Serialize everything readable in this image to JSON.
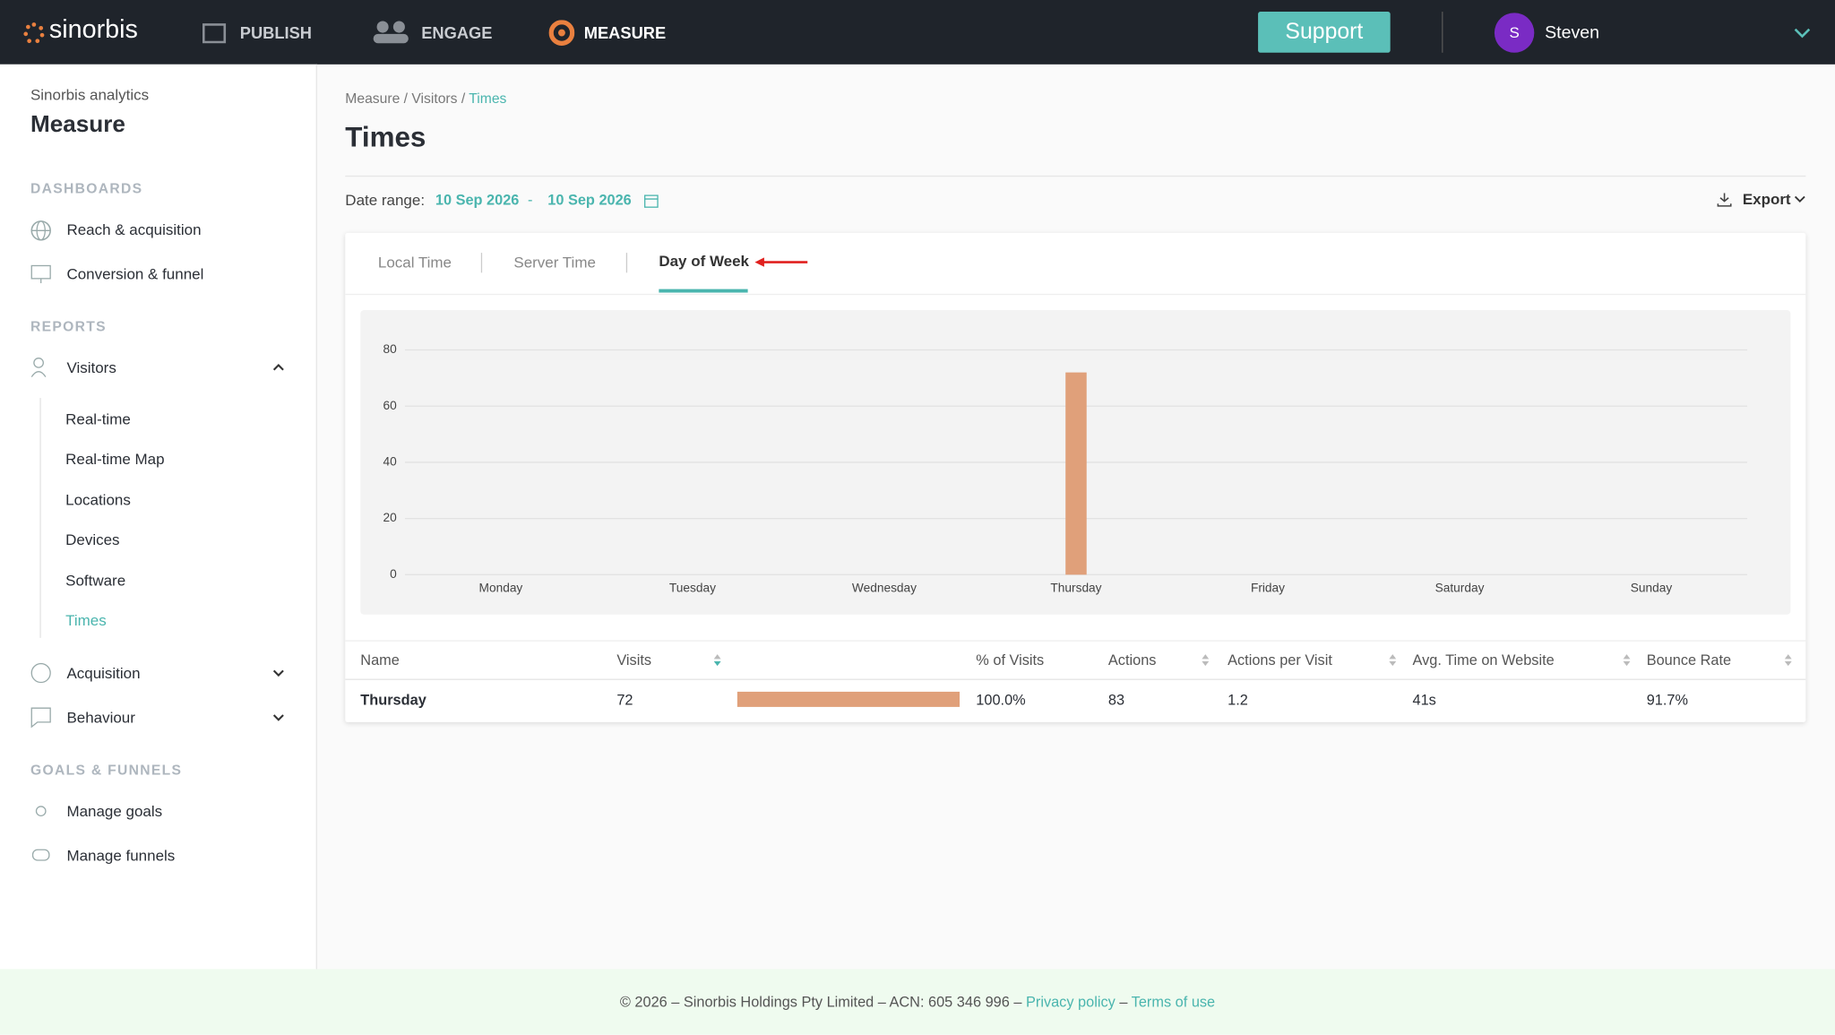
{
  "topbar": {
    "logo": "sinorbis",
    "nav": [
      "PUBLISH",
      "ENGAGE",
      "MEASURE"
    ],
    "support": "Support",
    "user_initial": "S",
    "user_name": "Steven"
  },
  "sidebar": {
    "subtitle": "Sinorbis analytics",
    "title": "Measure",
    "sections": [
      {
        "heading": "DASHBOARDS",
        "items": [
          "Reach & acquisition",
          "Conversion & funnel"
        ]
      },
      {
        "heading": "REPORTS",
        "items": [
          "Visitors",
          "Acquisition",
          "Behaviour"
        ],
        "visitor_items": [
          "Real-time",
          "Real-time Map",
          "Locations",
          "Devices",
          "Software",
          "Times"
        ]
      },
      {
        "heading": "GOALS & FUNNELS",
        "items": [
          "Manage goals",
          "Manage funnels"
        ]
      }
    ]
  },
  "breadcrumb": [
    "Measure",
    "Visitors",
    "Times"
  ],
  "separator": "/",
  "page_title": "Times",
  "date_range": {
    "label": "Date range:",
    "start": "10 Sep 2026",
    "dash": "-",
    "end": "10 Sep 2026"
  },
  "export": "Export",
  "tabs": [
    "Local Time",
    "Server Time",
    "Day of Week"
  ],
  "chart_data": {
    "type": "bar",
    "categories": [
      "Monday",
      "Tuesday",
      "Wednesday",
      "Thursday",
      "Friday",
      "Saturday",
      "Sunday"
    ],
    "values": [
      0,
      0,
      0,
      72,
      0,
      0,
      0
    ],
    "color": "#e0a07a",
    "ylim": [
      0,
      80
    ],
    "yticks": [
      0,
      20,
      40,
      60,
      80
    ],
    "grid": true
  },
  "table": {
    "columns": [
      "Name",
      "Visits",
      "% of Visits",
      "Actions",
      "Actions per Visit",
      "Avg. Time on Website",
      "Bounce Rate"
    ],
    "rows": [
      [
        "Thursday",
        "72",
        "100.0%",
        "83",
        "1.2",
        "41s",
        "91.7%"
      ]
    ]
  },
  "footer": {
    "text": "© 2026 – Sinorbis Holdings Pty Limited – ACN: 605 346 996 –",
    "privacy": "Privacy policy",
    "dash": "–",
    "terms": "Terms of use"
  }
}
